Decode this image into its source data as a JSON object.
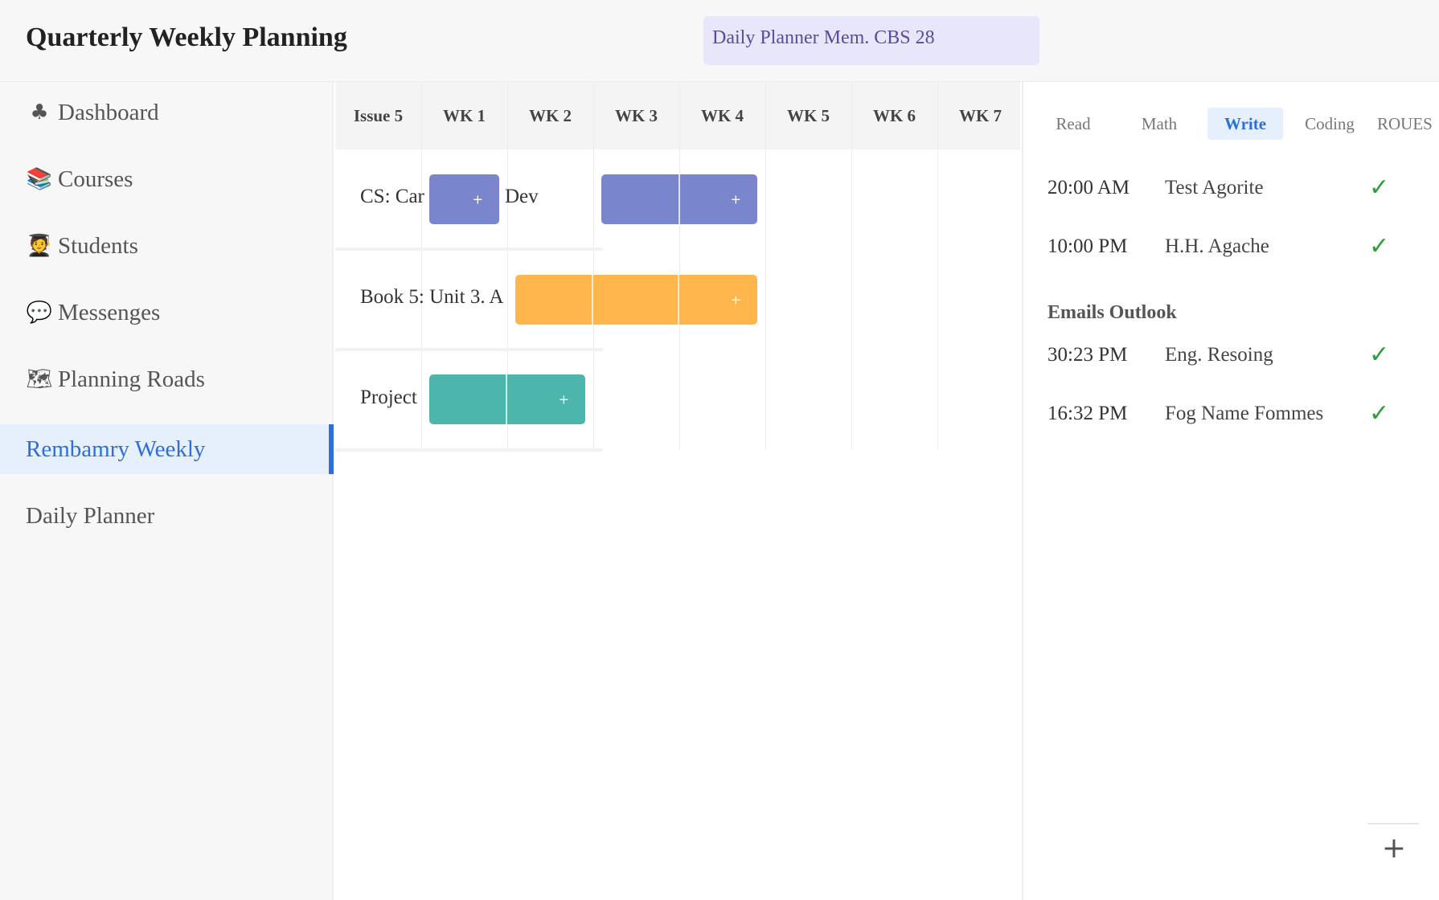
{
  "header": {
    "title": "Quarterly Weekly Planning",
    "search_value": "Daily Planner Mem. CBS 28"
  },
  "sidebar": {
    "items": [
      {
        "icon": "club-icon",
        "glyph": "♣",
        "label": "Dashboard"
      },
      {
        "icon": "books-icon",
        "glyph": "📚",
        "label": "Courses"
      },
      {
        "icon": "student-icon",
        "glyph": "🧑‍🎓",
        "label": "Students"
      },
      {
        "icon": "speech-bubble-icon",
        "glyph": "💬",
        "label": "Messenges"
      },
      {
        "icon": "map-icon",
        "glyph": "🗺",
        "label": "Planning Roads"
      },
      {
        "icon": "",
        "glyph": "",
        "label": "Rembamry Weekly",
        "active": true
      },
      {
        "icon": "",
        "glyph": "",
        "label": "Daily Planner"
      }
    ]
  },
  "timeline": {
    "columns": [
      "Issue 5",
      "WK 1",
      "WK 2",
      "WK 3",
      "WK 4",
      "WK 5",
      "WK 6",
      "WK 7"
    ],
    "rows": [
      {
        "label": "CS: Career Dev",
        "visible_parts": [
          "CS: Car",
          "Dev"
        ],
        "color": "#7986cb"
      },
      {
        "label": "Book 5: Unit 3. A",
        "color": "#ffb74d"
      },
      {
        "label": "Project",
        "color": "#4db6ac"
      }
    ],
    "bar_add_label": "+"
  },
  "panel": {
    "tabs": [
      {
        "label": "Read"
      },
      {
        "label": "Math"
      },
      {
        "label": "Write",
        "active": true
      },
      {
        "label": "Coding"
      },
      {
        "label": "ROUES"
      }
    ],
    "entries": [
      {
        "time": "20:00 AM",
        "name": "Test Agorite",
        "done": "✓"
      },
      {
        "time": "10:00 PM",
        "name": "H.H. Agache",
        "done": "✓"
      }
    ],
    "section_title": "Emails Outlook",
    "section_entries": [
      {
        "time": "30:23 PM",
        "name": "Eng. Resoing",
        "done": "✓"
      },
      {
        "time": "16:32 PM",
        "name": "Fog Name Fommes",
        "done": "✓"
      }
    ],
    "add_label": "+"
  },
  "colors": {
    "accent": "#2d6fd6",
    "bar_blue": "#7986cb",
    "bar_orange": "#ffb74d",
    "bar_teal": "#4db6ac",
    "check_green": "#2e9d3a"
  }
}
